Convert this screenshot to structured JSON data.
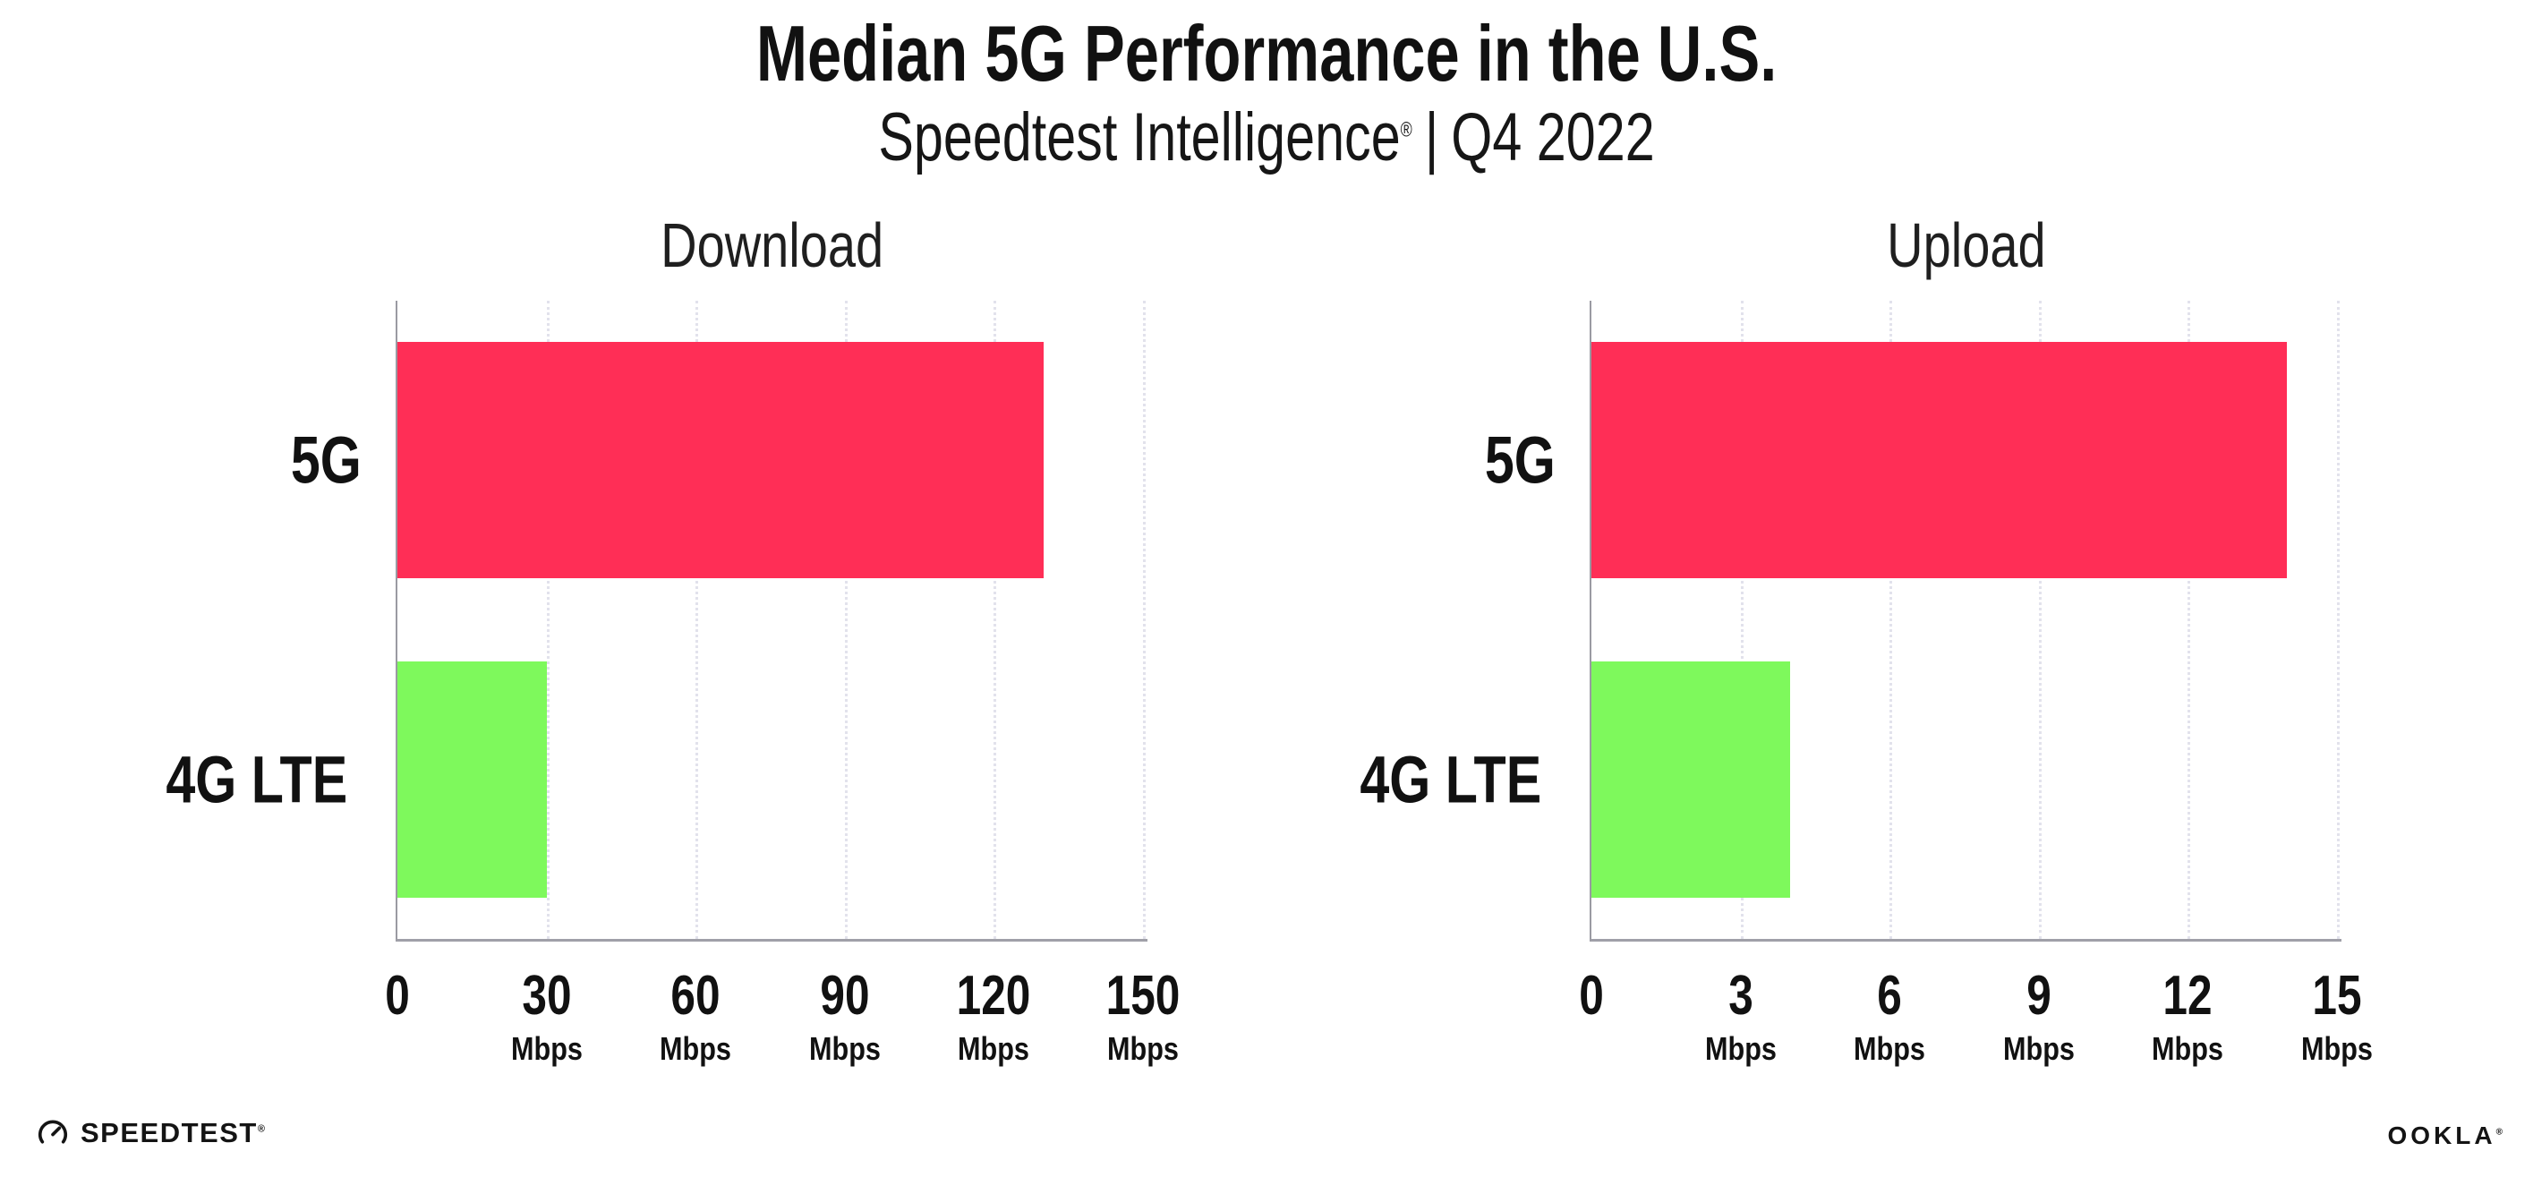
{
  "header": {
    "title": "Median 5G Performance in the U.S.",
    "subtitle_product": "Speedtest Intelligence",
    "subtitle_trademark": "®",
    "subtitle_separator": "|",
    "subtitle_period": "Q4 2022"
  },
  "chart_data": [
    {
      "type": "bar",
      "orientation": "horizontal",
      "title": "Download",
      "categories": [
        "5G",
        "4G LTE"
      ],
      "values": [
        130,
        30
      ],
      "unit": "Mbps",
      "xlim": [
        0,
        150
      ],
      "xticks": [
        0,
        30,
        60,
        90,
        120,
        150
      ],
      "grid": "vertical dotted",
      "legend": "none",
      "bar_colors": [
        "#ff2e56",
        "#7ef95c"
      ]
    },
    {
      "type": "bar",
      "orientation": "horizontal",
      "title": "Upload",
      "categories": [
        "5G",
        "4G LTE"
      ],
      "values": [
        14,
        4
      ],
      "unit": "Mbps",
      "xlim": [
        0,
        15
      ],
      "xticks": [
        0,
        3,
        6,
        9,
        12,
        15
      ],
      "grid": "vertical dotted",
      "legend": "none",
      "bar_colors": [
        "#ff2e56",
        "#7ef95c"
      ]
    }
  ],
  "footer": {
    "speedtest_label": "SPEEDTEST",
    "speedtest_mark": "®",
    "ookla_label": "OOKLA",
    "ookla_mark": "®"
  },
  "colors": {
    "bar_5g": "#ff2e56",
    "bar_4g_lte": "#7ef95c",
    "axis": "#9a9aa2",
    "gridline": "#e2e2ec",
    "text": "#111111",
    "background": "#ffffff"
  }
}
